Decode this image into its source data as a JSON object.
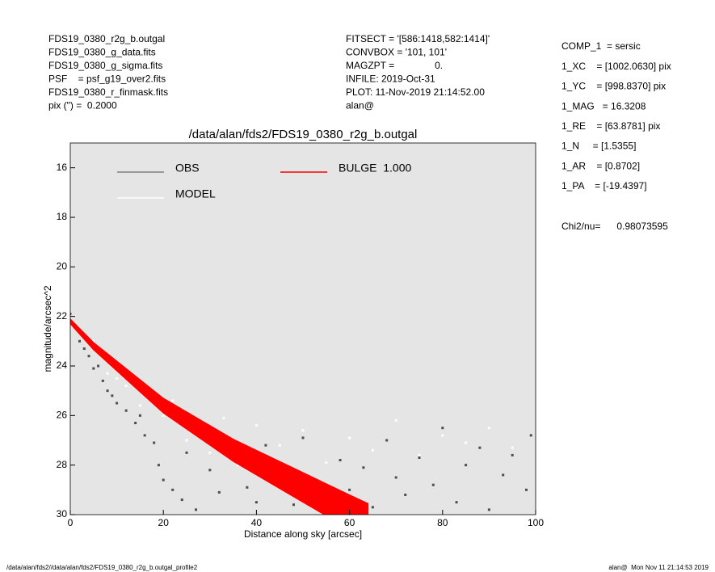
{
  "header": {
    "left": [
      "FDS19_0380_r2g_b.outgal",
      "FDS19_0380_g_data.fits",
      "FDS19_0380_g_sigma.fits",
      "PSF    = psf_g19_over2.fits",
      "FDS19_0380_r_finmask.fits",
      "pix (\") =  0.2000"
    ],
    "middle": [
      "FITSECT = '[586:1418,582:1414]'",
      "CONVBOX = '101, 101'",
      "MAGZPT =               0.",
      "INFILE: 2019-Oct-31",
      "PLOT: 11-Nov-2019 21:14:52.00",
      "alan@"
    ],
    "right": [
      "COMP_1  = sersic",
      "1_XC    = [1002.0630] pix",
      "1_YC    = [998.8370] pix",
      "1_MAG   = 16.3208",
      "1_RE    = [63.8781] pix",
      "1_N     = [1.5355]",
      "1_AR    = [0.8702]",
      "1_PA    = [-19.4397]"
    ],
    "fit": "Chi2/nu=      0.98073595"
  },
  "footer": {
    "left": "/data/alan/fds2//data/alan/fds2/FDS19_0380_r2g_b.outgal_profile2",
    "right": "alan@  Mon Nov 11 21:14:53 2019"
  },
  "chart_data": {
    "type": "scatter",
    "title": "/data/alan/fds2/FDS19_0380_r2g_b.outgal",
    "xlabel": "Distance along sky [arcsec]",
    "ylabel": "magnitude/arcsec^2",
    "xlim": [
      0,
      100
    ],
    "ylim": [
      30,
      15
    ],
    "xticks": [
      0,
      20,
      40,
      60,
      80,
      100
    ],
    "yticks": [
      16,
      18,
      20,
      22,
      24,
      26,
      28,
      30
    ],
    "background": "#e5e5e5",
    "legend": "upper left",
    "series": [
      {
        "name": "OBS",
        "color": "#808080",
        "marker_color": "#4d4d4d",
        "x": [
          0,
          1,
          2,
          3,
          4,
          5,
          6,
          7,
          8,
          9,
          10,
          12,
          14,
          15,
          16,
          18,
          19,
          20,
          22,
          24,
          25,
          27,
          30,
          32,
          35,
          38,
          40,
          42,
          45,
          48,
          50,
          53,
          55,
          58,
          60,
          63,
          65,
          68,
          70,
          72,
          75,
          78,
          80,
          83,
          85,
          88,
          90,
          93,
          95,
          98,
          99
        ],
        "values": [
          21.9,
          22.4,
          23.0,
          23.3,
          23.6,
          24.1,
          24.0,
          24.6,
          25.0,
          25.2,
          25.5,
          25.8,
          26.3,
          26.0,
          26.8,
          27.1,
          28.0,
          28.6,
          29.0,
          29.4,
          27.5,
          29.8,
          28.2,
          29.1,
          27.6,
          28.9,
          29.5,
          27.2,
          28.3,
          29.6,
          26.9,
          28.7,
          29.3,
          27.8,
          29.0,
          28.1,
          29.7,
          27.0,
          28.5,
          29.2,
          27.7,
          28.8,
          26.5,
          29.5,
          28.0,
          27.3,
          29.8,
          28.4,
          27.6,
          29.0,
          26.8
        ]
      },
      {
        "name": "MODEL",
        "color": "#ffffff",
        "x": [
          5,
          8,
          10,
          12,
          15,
          18,
          20,
          22,
          25,
          28,
          30,
          33,
          36,
          40,
          45,
          50,
          55,
          60,
          65,
          70,
          75,
          80,
          85,
          90,
          95
        ],
        "values": [
          23.0,
          24.3,
          24.5,
          24.8,
          25.6,
          25.5,
          26.0,
          25.4,
          27.0,
          26.3,
          27.5,
          26.1,
          28.0,
          26.4,
          27.2,
          26.6,
          27.9,
          26.9,
          27.4,
          26.2,
          27.6,
          26.8,
          27.1,
          26.5,
          27.3
        ]
      },
      {
        "name": "BULGE  1.000",
        "type": "band",
        "color": "#ff0000",
        "x": [
          0,
          5,
          10,
          15,
          20,
          25,
          30,
          35,
          40,
          45,
          50,
          55,
          60,
          64
        ],
        "low": [
          22.1,
          23.05,
          23.8,
          24.55,
          25.3,
          25.85,
          26.4,
          26.95,
          27.4,
          27.85,
          28.3,
          28.75,
          29.2,
          29.55
        ],
        "high": [
          22.3,
          23.35,
          24.2,
          25.05,
          25.9,
          26.55,
          27.2,
          27.85,
          28.4,
          28.95,
          29.5,
          30.05,
          30.6,
          31.0
        ]
      }
    ]
  }
}
